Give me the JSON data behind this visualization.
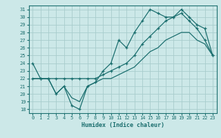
{
  "xlabel": "Humidex (Indice chaleur)",
  "xlim": [
    -0.5,
    23.5
  ],
  "ylim": [
    17.5,
    31.5
  ],
  "xticks": [
    0,
    1,
    2,
    3,
    4,
    5,
    6,
    7,
    8,
    9,
    10,
    11,
    12,
    13,
    14,
    15,
    16,
    17,
    18,
    19,
    20,
    21,
    22,
    23
  ],
  "yticks": [
    18,
    19,
    20,
    21,
    22,
    23,
    24,
    25,
    26,
    27,
    28,
    29,
    30,
    31
  ],
  "bg_color": "#cce8e8",
  "grid_color": "#a8cccc",
  "line_color": "#1a6e6e",
  "line1_x": [
    0,
    1,
    2,
    3,
    4,
    5,
    6,
    7,
    8,
    9,
    10,
    11,
    12,
    13,
    14,
    15,
    16,
    17,
    18,
    19,
    20,
    21,
    22,
    23
  ],
  "line1_y": [
    24,
    22,
    22,
    20,
    21,
    18.5,
    18,
    21,
    21.5,
    23,
    24,
    27,
    26,
    28,
    29.5,
    31,
    30.5,
    30,
    30,
    30.5,
    29.5,
    28.5,
    27,
    25
  ],
  "line2_x": [
    0,
    1,
    2,
    3,
    4,
    5,
    6,
    7,
    8,
    9,
    10,
    11,
    12,
    13,
    14,
    15,
    16,
    17,
    18,
    19,
    20,
    21,
    22,
    23
  ],
  "line2_y": [
    22,
    22,
    22,
    22,
    22,
    22,
    22,
    22,
    22,
    22.5,
    23,
    23.5,
    24,
    25,
    26.5,
    27.5,
    28.5,
    29.5,
    30,
    31,
    30,
    29,
    28.5,
    25
  ],
  "line3_x": [
    0,
    1,
    2,
    3,
    4,
    5,
    6,
    7,
    8,
    9,
    10,
    11,
    12,
    13,
    14,
    15,
    16,
    17,
    18,
    19,
    20,
    21,
    22,
    23
  ],
  "line3_y": [
    22,
    22,
    22,
    20,
    21,
    19.5,
    19,
    21,
    21.5,
    22,
    22,
    22.5,
    23,
    23.5,
    24.5,
    25.5,
    26,
    27,
    27.5,
    28,
    28,
    27,
    26.5,
    25
  ]
}
